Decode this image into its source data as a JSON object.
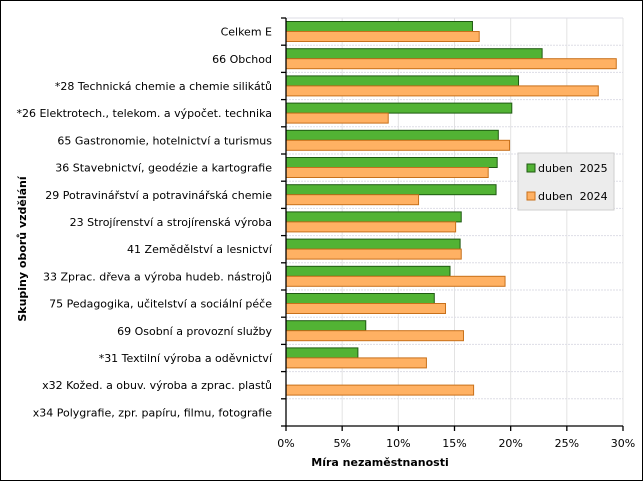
{
  "chart_data": {
    "type": "bar",
    "orientation": "horizontal",
    "title": "",
    "xlabel": "Míra nezaměstnanosti",
    "ylabel": "Skupiny oborů vzdělání",
    "xlim": [
      0,
      30
    ],
    "x_ticks": [
      0,
      5,
      10,
      15,
      20,
      25,
      30
    ],
    "x_tick_labels": [
      "0%",
      "5%",
      "10%",
      "15%",
      "20%",
      "25%",
      "30%"
    ],
    "grid": true,
    "legend_position": "right",
    "categories": [
      "Celkem E",
      "66 Obchod",
      "*28 Technická chemie a chemie silikátů",
      "*26 Elektrotech., telekom. a výpočet. technika",
      "65 Gastronomie, hotelnictví a turismus",
      "36 Stavebnictví, geodézie a kartografie",
      "29 Potravinářství a potravinářská chemie",
      "23 Strojírenství a strojírenská výroba",
      "41 Zemědělství a lesnictví",
      "33 Zprac. dřeva a výroba hudeb. nástrojů",
      "75 Pedagogika, učitelství a sociální péče",
      "69 Osobní a provozní služby",
      "*31 Textilní výroba a oděvnictví",
      "x32 Kožed. a obuv. výroba a zprac. plastů",
      "x34 Polygrafie, zpr. papíru, filmu, fotografie"
    ],
    "series": [
      {
        "name": "duben  2025",
        "color": "#52b334",
        "stroke": "#1f5a12",
        "values": [
          16.6,
          22.8,
          20.7,
          20.1,
          18.9,
          18.8,
          18.7,
          15.6,
          15.5,
          14.6,
          13.2,
          7.1,
          6.4,
          null,
          null
        ]
      },
      {
        "name": "duben  2024",
        "color": "#ffb163",
        "stroke": "#c8701a",
        "values": [
          17.2,
          29.4,
          27.8,
          9.1,
          19.9,
          18.0,
          11.8,
          15.1,
          15.6,
          19.5,
          14.2,
          15.8,
          12.5,
          16.7,
          null
        ]
      }
    ]
  }
}
